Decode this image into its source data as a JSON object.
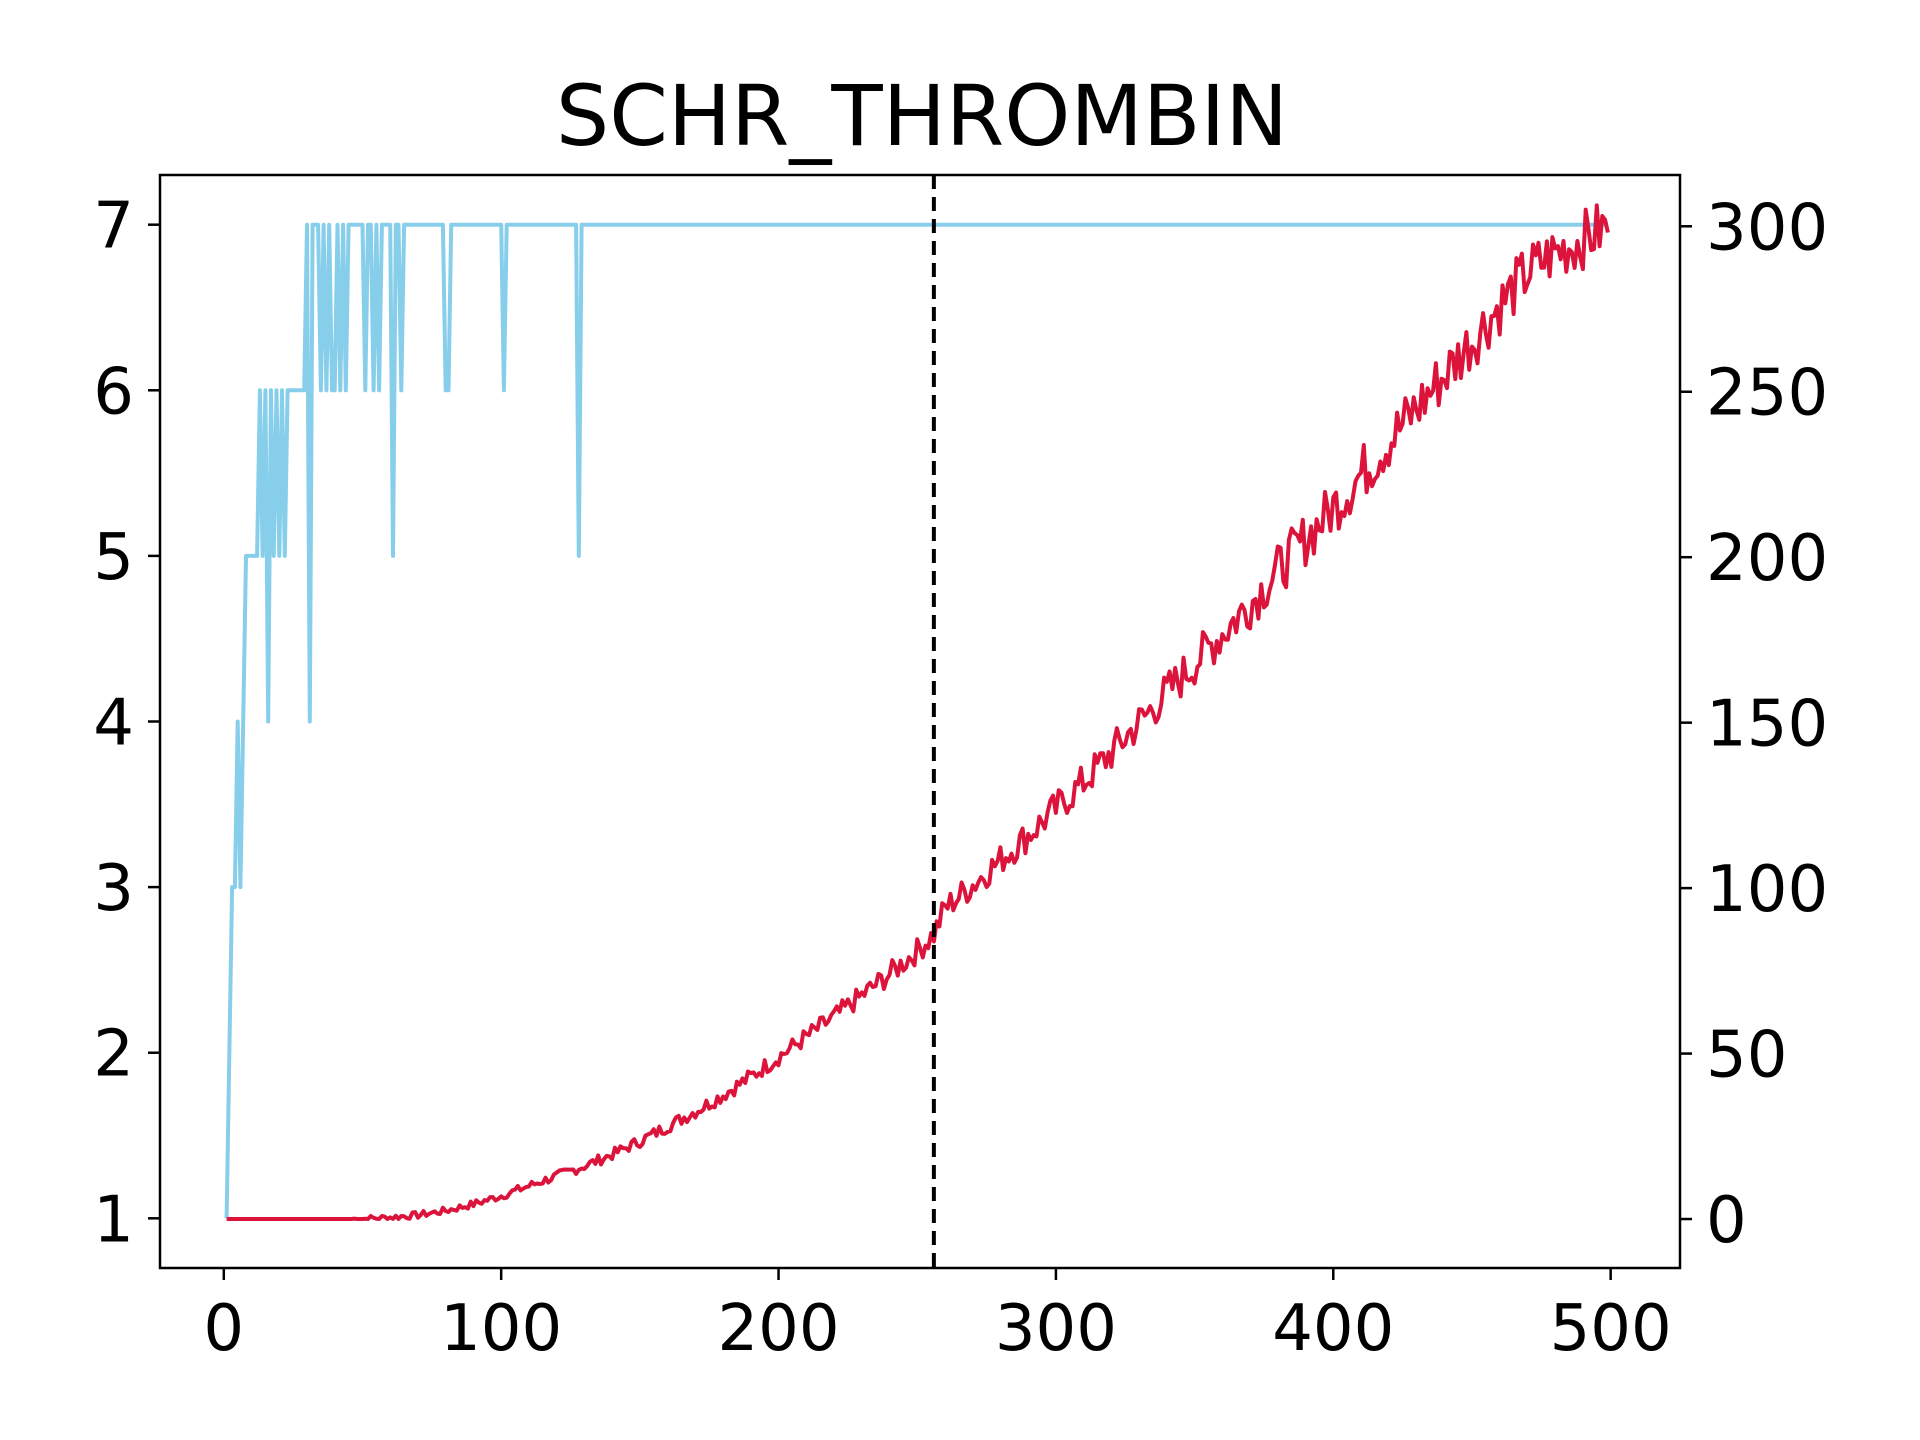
{
  "chart_data": {
    "type": "line",
    "title": "SCHR_THROMBIN",
    "xlabel": "",
    "ylabel_left": "",
    "ylabel_right": "",
    "xlim": [
      -23,
      525
    ],
    "ylim_left": [
      0.7,
      7.3
    ],
    "ylim_right": [
      -14.8,
      315.5
    ],
    "x_ticks": [
      0,
      100,
      200,
      300,
      400,
      500
    ],
    "y_left_ticks": [
      1,
      2,
      3,
      4,
      5,
      6,
      7
    ],
    "y_right_ticks": [
      0,
      50,
      100,
      150,
      200,
      250,
      300
    ],
    "vline_x": 256,
    "vline_style": "dashed",
    "grid": false,
    "legend": "none",
    "colors": {
      "left_series": "#87ceeb",
      "right_series": "#dc143c",
      "vline": "#000000",
      "axes": "#000000"
    },
    "series": [
      {
        "axis": "left",
        "color": "#87ceeb",
        "x": [
          1,
          3,
          4,
          5,
          6,
          7,
          8,
          9,
          10,
          12,
          13,
          14,
          15,
          16,
          17,
          18,
          19,
          20,
          21,
          22,
          23,
          24,
          25,
          26,
          29,
          30,
          31,
          32,
          33,
          34,
          35,
          36,
          37,
          38,
          39,
          40,
          41,
          42,
          43,
          44,
          45,
          46,
          47,
          48,
          49,
          50,
          51,
          52,
          53,
          54,
          55,
          56,
          57,
          58,
          59,
          60,
          61,
          62,
          63,
          64,
          65,
          66,
          67,
          68,
          69,
          70,
          79,
          80,
          81,
          82,
          100,
          101,
          102,
          127,
          128,
          129,
          499
        ],
        "y": [
          1,
          3,
          3,
          4,
          3,
          4,
          5,
          5,
          5,
          5,
          6,
          5,
          6,
          4,
          6,
          5,
          6,
          5,
          6,
          5,
          6,
          6,
          6,
          6,
          6,
          7,
          4,
          7,
          7,
          7,
          6,
          7,
          6,
          7,
          6,
          6,
          7,
          6,
          7,
          6,
          7,
          7,
          7,
          7,
          7,
          7,
          6,
          7,
          7,
          6,
          7,
          6,
          7,
          7,
          7,
          7,
          5,
          7,
          7,
          6,
          7,
          7,
          7,
          7,
          7,
          7,
          7,
          6,
          6,
          7,
          7,
          6,
          7,
          7,
          5,
          7,
          7
        ]
      },
      {
        "axis": "right",
        "color": "#dc143c",
        "x": [
          1,
          10,
          20,
          30,
          40,
          50,
          60,
          70,
          80,
          90,
          100,
          110,
          120,
          130,
          140,
          150,
          160,
          170,
          180,
          190,
          200,
          210,
          220,
          230,
          240,
          250,
          256,
          260,
          270,
          280,
          290,
          300,
          310,
          320,
          330,
          340,
          350,
          360,
          370,
          380,
          390,
          400,
          410,
          420,
          430,
          440,
          450,
          460,
          470,
          480,
          490,
          499
        ],
        "y": [
          0,
          0,
          0,
          0,
          0,
          0,
          0.5,
          1.2,
          2.5,
          4.5,
          7,
          10,
          13,
          16,
          19.5,
          23.5,
          28,
          32.5,
          37.5,
          43,
          49,
          55,
          61,
          67.5,
          74,
          81,
          86,
          94,
          101,
          108.5,
          116,
          124,
          132,
          141,
          150,
          159,
          168,
          177,
          186,
          196,
          205.5,
          215,
          225,
          235,
          245,
          255,
          265.5,
          276,
          286,
          292,
          296,
          300
        ]
      }
    ]
  }
}
